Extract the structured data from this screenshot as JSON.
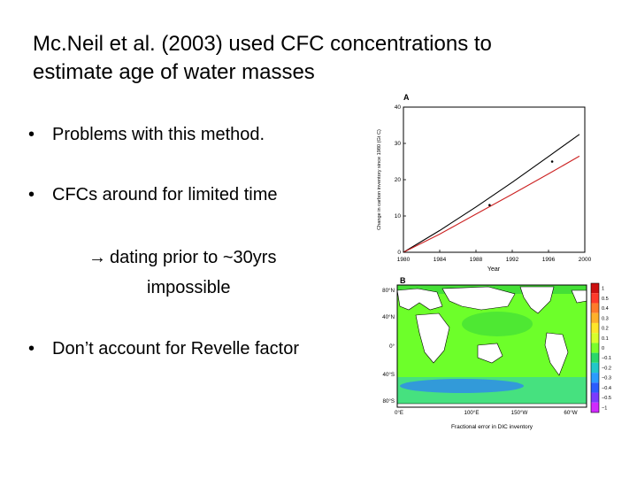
{
  "slide": {
    "title_line1": "Mc.Neil et al. (2003) used CFC concentrations to",
    "title_line2": "estimate age of water masses",
    "bullets": [
      "Problems with this method.",
      "CFCs around for limited time",
      "Don’t account for Revelle factor"
    ],
    "bullet_glyph": "•",
    "sub_arrow": "→",
    "sub_line1": "dating prior to ~30yrs",
    "sub_line2": "impossible"
  },
  "chart_data": [
    {
      "type": "line",
      "panel_label": "A",
      "xlabel": "Year",
      "ylabel": "Change in carbon inventory since 1980 (Gt C)",
      "xlim": [
        1980,
        2000
      ],
      "ylim": [
        0,
        40
      ],
      "x_ticks": [
        1980,
        1984,
        1988,
        1992,
        1996,
        2000
      ],
      "y_ticks": [
        0,
        10,
        20,
        30,
        40
      ],
      "series": [
        {
          "color": "#000000",
          "x": [
            1980,
            1984,
            1988,
            1992,
            1996,
            1999.4
          ],
          "y": [
            0,
            6.0,
            12.5,
            19.3,
            26.4,
            32.5
          ]
        },
        {
          "color": "#cc2222",
          "x": [
            1980,
            1984,
            1988,
            1992,
            1996,
            1999.4
          ],
          "y": [
            0,
            5.0,
            10.5,
            16.0,
            21.6,
            26.5
          ]
        }
      ],
      "points": {
        "x": [
          1989.5,
          1996.4
        ],
        "y": [
          13,
          25
        ]
      }
    },
    {
      "type": "heatmap",
      "panel_label": "B",
      "xlabel": "Fractional error in DIC inventory",
      "x_ticks": [
        "0°E",
        "100°E",
        "150°W",
        "60°W"
      ],
      "y_ticks": [
        "80°N",
        "40°N",
        "0°",
        "40°S",
        "80°S"
      ],
      "colorbar_labels": [
        "1",
        "0.5",
        "0.4",
        "0.3",
        "0.2",
        "0.1",
        "0",
        "−0.1",
        "−0.2",
        "−0.3",
        "−0.4",
        "−0.5",
        "−1"
      ],
      "colorbar_colors": [
        "#cc1010",
        "#ff3a2a",
        "#ff7a2a",
        "#ffb02a",
        "#ffe52a",
        "#d8ff2a",
        "#7aff2a",
        "#2ad86a",
        "#22c8c8",
        "#2a9cff",
        "#2a5cff",
        "#7a3aff",
        "#d02aff"
      ],
      "land_color": "#ffffff",
      "ocean_colors": [
        "#6dff2a",
        "#3ad83a",
        "#27c9c4",
        "#2a7cff"
      ]
    }
  ]
}
